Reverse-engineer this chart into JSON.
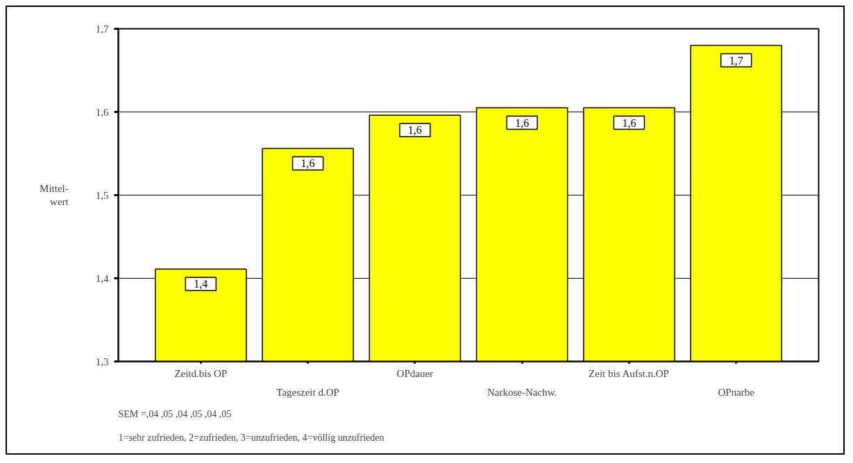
{
  "chart_data": {
    "type": "bar",
    "categories": [
      "Zeitd.bis OP",
      "Tageszeit d.OP",
      "OPdauer",
      "Narkose-Nachw.",
      "Zeit bis Aufst.n.OP",
      "OPnarbe"
    ],
    "values": [
      1.411,
      1.556,
      1.596,
      1.605,
      1.605,
      1.68
    ],
    "value_labels": [
      "1,4",
      "1,6",
      "1,6",
      "1,6",
      "1,6",
      "1,7"
    ],
    "color": "#ffff00",
    "ylabel": "Mittel-\nwert",
    "ylim": [
      1.3,
      1.7
    ],
    "yticks": [
      {
        "value": 1.3,
        "label": "1,3"
      },
      {
        "value": 1.4,
        "label": "1,4"
      },
      {
        "value": 1.5,
        "label": "1,5"
      },
      {
        "value": 1.6,
        "label": "1,6"
      },
      {
        "value": 1.7,
        "label": "1,7"
      }
    ],
    "grid": "y",
    "annotations": [
      "SEM =,04    ,05    ,04    ,05    ,04    ,05",
      "1=sehr zufrieden, 2=zufrieden, 3=unzufrieden, 4=völlig unzufrieden"
    ]
  }
}
